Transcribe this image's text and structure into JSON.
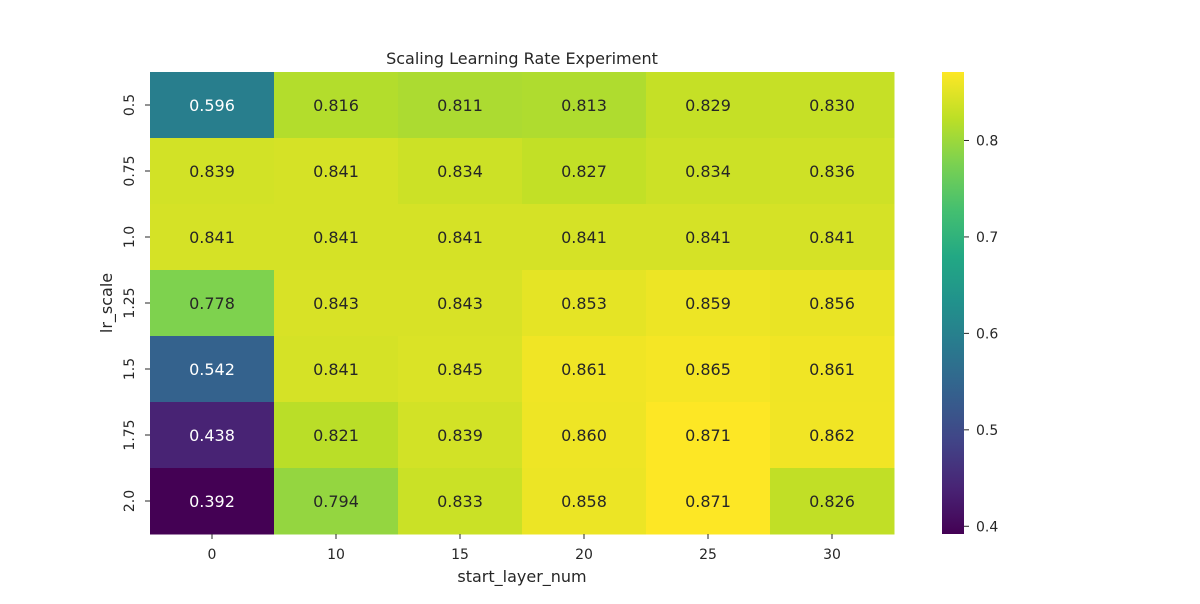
{
  "chart_data": {
    "type": "heatmap",
    "title": "Scaling Learning Rate Experiment",
    "xlabel": "start_layer_num",
    "ylabel": "lr_scale",
    "x_categories": [
      "0",
      "10",
      "15",
      "20",
      "25",
      "30"
    ],
    "y_categories": [
      "0.5",
      "0.75",
      "1.0",
      "1.25",
      "1.5",
      "1.75",
      "2.0"
    ],
    "values": [
      [
        0.596,
        0.816,
        0.811,
        0.813,
        0.829,
        0.83
      ],
      [
        0.839,
        0.841,
        0.834,
        0.827,
        0.834,
        0.836
      ],
      [
        0.841,
        0.841,
        0.841,
        0.841,
        0.841,
        0.841
      ],
      [
        0.778,
        0.843,
        0.843,
        0.853,
        0.859,
        0.856
      ],
      [
        0.542,
        0.841,
        0.845,
        0.861,
        0.865,
        0.861
      ],
      [
        0.438,
        0.821,
        0.839,
        0.86,
        0.871,
        0.862
      ],
      [
        0.392,
        0.794,
        0.833,
        0.858,
        0.871,
        0.826
      ]
    ],
    "value_format": "0.000",
    "colormap": "viridis",
    "colorbar": {
      "range": [
        0.392,
        0.871
      ],
      "ticks": [
        0.4,
        0.5,
        0.6,
        0.7,
        0.8
      ],
      "tick_labels": [
        "0.4",
        "0.5",
        "0.6",
        "0.7",
        "0.8"
      ]
    },
    "grid": false,
    "colors": {
      "text_dark": "#262626",
      "text_light": "#ffffff",
      "tick": "#262626"
    }
  }
}
